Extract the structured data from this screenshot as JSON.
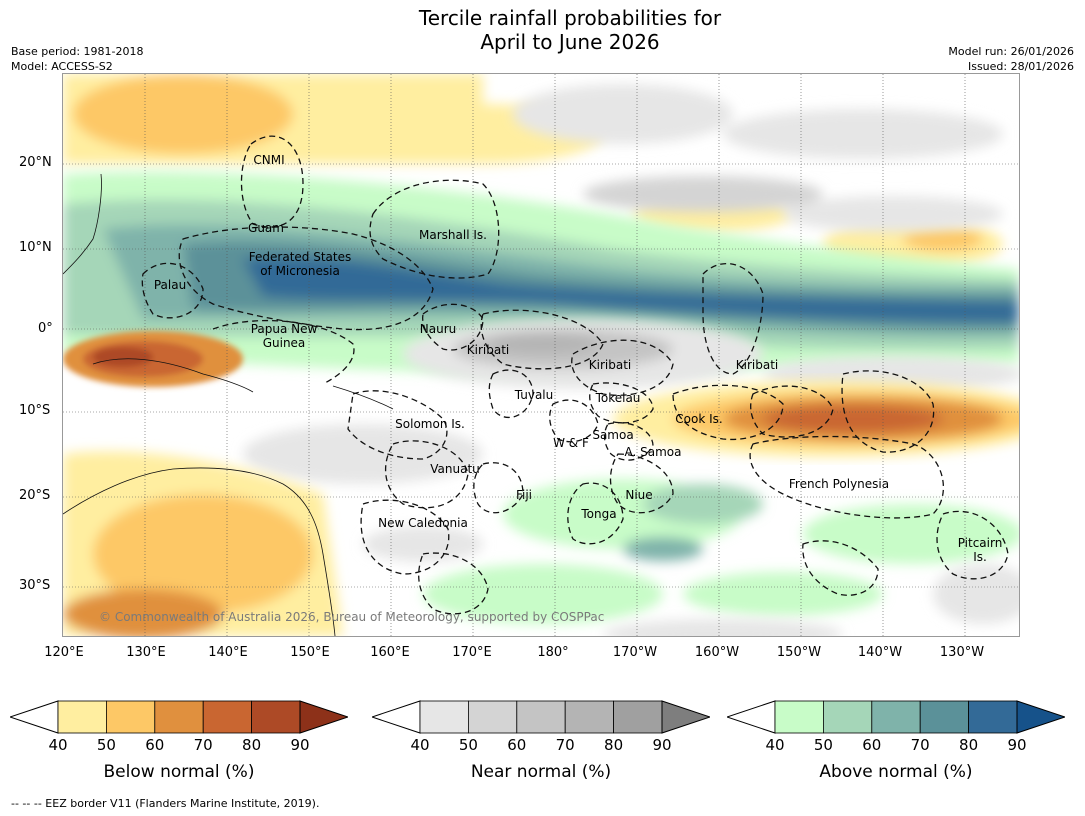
{
  "title_line1": "Tercile rainfall probabilities for",
  "title_line2": "April to June 2026",
  "meta_left": {
    "base_period": "Base period: 1981-2018",
    "model": "Model: ACCESS-S2"
  },
  "meta_right": {
    "model_run": "Model run: 26/01/2026",
    "issued": "Issued: 28/01/2026"
  },
  "lat_labels": [
    "20°N",
    "10°N",
    "0°",
    "10°S",
    "20°S",
    "30°S"
  ],
  "lon_labels": [
    "120°E",
    "130°E",
    "140°E",
    "150°E",
    "160°E",
    "170°E",
    "180°",
    "170°W",
    "160°W",
    "150°W",
    "140°W",
    "130°W"
  ],
  "regions": {
    "cnmi": "CNMI",
    "guam": "Guam",
    "marshall": "Marshall Is.",
    "fsm_1": "Federated States",
    "fsm_2": "of Micronesia",
    "palau": "Palau",
    "png_1": "Papua New",
    "png_2": "Guinea",
    "nauru": "Nauru",
    "kiribati_w": "Kiribati",
    "kiribati_c": "Kiribati",
    "kiribati_e": "Kiribati",
    "tuvalu": "Tuvalu",
    "tokelau": "Tokelau",
    "cook": "Cook Is.",
    "solomon": "Solomon Is.",
    "samoa": "Samoa",
    "wf": "W & F",
    "asamoa": "A. Samoa",
    "vanuatu": "Vanuatu",
    "fiji": "Fiji",
    "niue": "Niue",
    "tonga": "Tonga",
    "frpoly": "French Polynesia",
    "newcal": "New Caledonia",
    "pitcairn_1": "Pitcairn",
    "pitcairn_2": "Is."
  },
  "copyright": "© Commonwealth of Australia 2026, Bureau of Meteorology, supported by COSPPac",
  "colorbars": {
    "below": {
      "label": "Below normal (%)",
      "ticks": [
        "40",
        "50",
        "60",
        "70",
        "80",
        "90"
      ],
      "colors": [
        "#ffeea0",
        "#fdc866",
        "#e0903e",
        "#c96631",
        "#ad4a26",
        "#8d3119"
      ]
    },
    "near": {
      "label": "Near normal (%)",
      "ticks": [
        "40",
        "50",
        "60",
        "70",
        "80",
        "90"
      ],
      "colors": [
        "#e6e6e6",
        "#d4d4d4",
        "#c4c4c4",
        "#b4b4b4",
        "#a0a0a0",
        "#7e7e7e"
      ]
    },
    "above": {
      "label": "Above normal (%)",
      "ticks": [
        "40",
        "50",
        "60",
        "70",
        "80",
        "90"
      ],
      "colors": [
        "#c8fcc8",
        "#a5d6b8",
        "#7fb3aa",
        "#5b9199",
        "#336a97",
        "#16528a"
      ]
    }
  },
  "footer": "--  --  -- EEZ border V11 (Flanders Marine Institute, 2019)."
}
